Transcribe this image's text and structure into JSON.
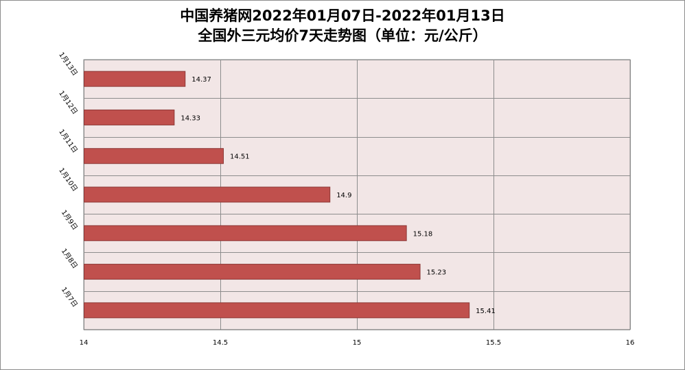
{
  "title_line1": "中国养猪网2022年01月07日-2022年01月13日",
  "title_line2": "全国外三元均价7天走势图（单位：元/公斤）",
  "colors": {
    "bar_fill": "#c0504d",
    "bar_stroke": "#8c3836",
    "plot_background": "#f2e6e6",
    "gridline": "#8c8c8c"
  },
  "chart_data": {
    "type": "bar",
    "orientation": "horizontal",
    "categories": [
      "1月7日",
      "1月8日",
      "1月9日",
      "1月10日",
      "1月11日",
      "1月12日",
      "1月13日"
    ],
    "values": [
      15.41,
      15.23,
      15.18,
      14.9,
      14.51,
      14.33,
      14.37
    ],
    "data_labels": [
      "15.41",
      "15.23",
      "15.18",
      "14.9",
      "14.51",
      "14.33",
      "14.37"
    ],
    "xlim": [
      14,
      16
    ],
    "x_ticks": [
      14,
      14.5,
      15,
      15.5,
      16
    ],
    "x_tick_labels": [
      "14",
      "14.5",
      "15",
      "15.5",
      "16"
    ],
    "grid": true,
    "legend": "none"
  }
}
